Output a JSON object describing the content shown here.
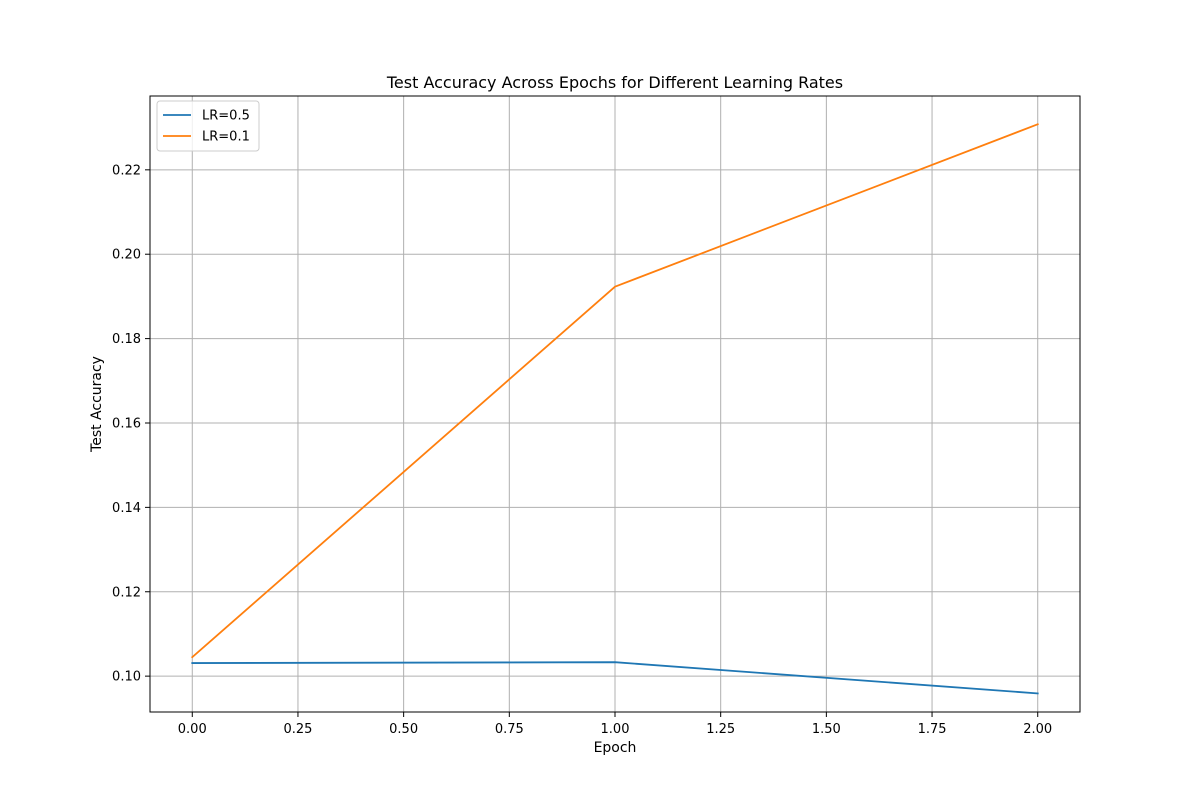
{
  "chart_data": {
    "type": "line",
    "title": "Test Accuracy Across Epochs for Different Learning Rates",
    "xlabel": "Epoch",
    "ylabel": "Test Accuracy",
    "x": [
      0,
      1,
      2
    ],
    "xlim": [
      -0.1,
      2.1
    ],
    "ylim": [
      0.0915,
      0.2375
    ],
    "xticks": [
      0.0,
      0.25,
      0.5,
      0.75,
      1.0,
      1.25,
      1.5,
      1.75,
      2.0
    ],
    "xtick_labels": [
      "0.00",
      "0.25",
      "0.50",
      "0.75",
      "1.00",
      "1.25",
      "1.50",
      "1.75",
      "2.00"
    ],
    "yticks": [
      0.1,
      0.12,
      0.14,
      0.16,
      0.18,
      0.2,
      0.22
    ],
    "ytick_labels": [
      "0.10",
      "0.12",
      "0.14",
      "0.16",
      "0.18",
      "0.20",
      "0.22"
    ],
    "grid": true,
    "legend_position": "top-left",
    "series": [
      {
        "name": "LR=0.5",
        "color": "#1f77b4",
        "values": [
          0.1031,
          0.1033,
          0.0959
        ]
      },
      {
        "name": "LR=0.1",
        "color": "#ff7f0e",
        "values": [
          0.1045,
          0.1923,
          0.2308
        ]
      }
    ]
  }
}
